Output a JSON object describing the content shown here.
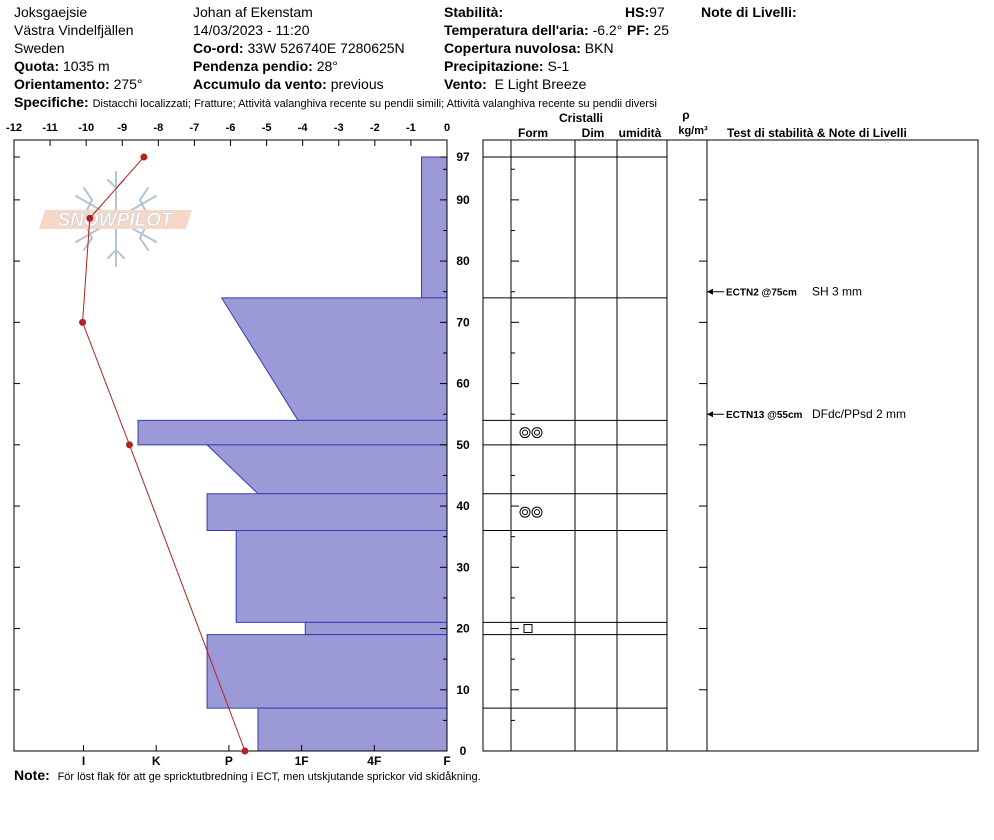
{
  "header": {
    "location": "Joksgaejsie",
    "area": "Västra Vindelfjällen",
    "country": "Sweden",
    "quota_label": "Quota:",
    "quota_value": "1035 m",
    "orientation_label": "Orientamento:",
    "orientation_value": "275°",
    "observer": "Johan af Ekenstam",
    "datetime": "14/03/2023 - 11:20",
    "coord_label": "Co-ord:",
    "coord_value": "33W 526740E 7280625N",
    "slope_label": "Pendenza pendio:",
    "slope_value": "28°",
    "wind_acc_label": "Accumulo da vento:",
    "wind_acc_value": "previous",
    "stability_label": "Stabilità:",
    "air_temp_label": "Temperatura dell'aria:",
    "air_temp_value": "-6.2°",
    "cloud_label": "Copertura nuvolosa:",
    "cloud_value": "BKN",
    "precip_label": "Precipitazione:",
    "precip_value": "S-1",
    "wind_label": "Vento:",
    "wind_value": "E Light Breeze",
    "hs_label": "HS:",
    "hs_value": "97",
    "pf_label": "PF:",
    "pf_value": "25",
    "notes_label": "Note di Livelli:",
    "specifics_label": "Specifiche:",
    "specifics_value": "Distacchi localizzati;  Fratture;  Attività valanghiva recente su pendii simili;  Attività valanghiva recente su pendii diversi"
  },
  "columns": {
    "crystals": "Cristalli",
    "form": "Form",
    "dim": "Dim",
    "moisture": "umidità",
    "rho": "ρ",
    "density_unit": "kg/m³",
    "tests": "Test di stabilità & Note di Livelli"
  },
  "axis": {
    "temp_ticks": [
      "-12",
      "-11",
      "-10",
      "-9",
      "-8",
      "-7",
      "-6",
      "-5",
      "-4",
      "-3",
      "-2",
      "-1",
      "0"
    ],
    "height_ticks": [
      "0",
      "10",
      "20",
      "30",
      "40",
      "50",
      "60",
      "70",
      "80",
      "90",
      "97"
    ],
    "hardness_labels": [
      "I",
      "K",
      "P",
      "1F",
      "4F",
      "F"
    ]
  },
  "logo": "SNOWPILOT",
  "chart_data": {
    "type": "snow_profile",
    "hs_cm": 97,
    "height_range": [
      0,
      97
    ],
    "temperature_range": [
      -12,
      0
    ],
    "temperature_profile": [
      {
        "height": 97,
        "temp": -8.4
      },
      {
        "height": 87,
        "temp": -9.9
      },
      {
        "height": 70,
        "temp": -10.1
      },
      {
        "height": 50,
        "temp": -8.8
      },
      {
        "height": 0,
        "temp": -5.6
      }
    ],
    "hardness_layers": [
      {
        "bottom": 74,
        "top": 97,
        "hardness_bottom": 0.35,
        "hardness_top": 0.35
      },
      {
        "bottom": 54,
        "top": 74,
        "hardness_bottom": 2.05,
        "hardness_top": 3.1
      },
      {
        "bottom": 50,
        "top": 54,
        "hardness_bottom": 4.25,
        "hardness_top": 4.25
      },
      {
        "bottom": 42,
        "top": 50,
        "hardness_bottom": 2.6,
        "hardness_top": 3.3
      },
      {
        "bottom": 36,
        "top": 42,
        "hardness_bottom": 3.3,
        "hardness_top": 3.3
      },
      {
        "bottom": 21,
        "top": 36,
        "hardness_bottom": 2.9,
        "hardness_top": 2.9
      },
      {
        "bottom": 19,
        "top": 21,
        "hardness_bottom": 1.95,
        "hardness_top": 1.95
      },
      {
        "bottom": 7,
        "top": 19,
        "hardness_bottom": 3.3,
        "hardness_top": 3.3
      },
      {
        "bottom": 0,
        "top": 7,
        "hardness_bottom": 2.6,
        "hardness_top": 2.6
      }
    ],
    "layer_boundaries": [
      97,
      74,
      54,
      50,
      42,
      36,
      21,
      19,
      7
    ],
    "crystal_forms": [
      {
        "height": 52,
        "symbol": "faceted-rounded"
      },
      {
        "height": 39,
        "symbol": "faceted-rounded"
      },
      {
        "height": 20,
        "symbol": "faceted"
      }
    ],
    "stability_tests": [
      {
        "height": 75,
        "code": "ECTN2 @75cm",
        "note": "SH 3 mm"
      },
      {
        "height": 55,
        "code": "ECTN13 @55cm",
        "note": "DFdc/PPsd 2 mm"
      }
    ]
  },
  "note": {
    "label": "Note:",
    "text": "För löst flak för att ge spricktutbredning i ECT, men utskjutande sprickor vid skidåkning."
  }
}
